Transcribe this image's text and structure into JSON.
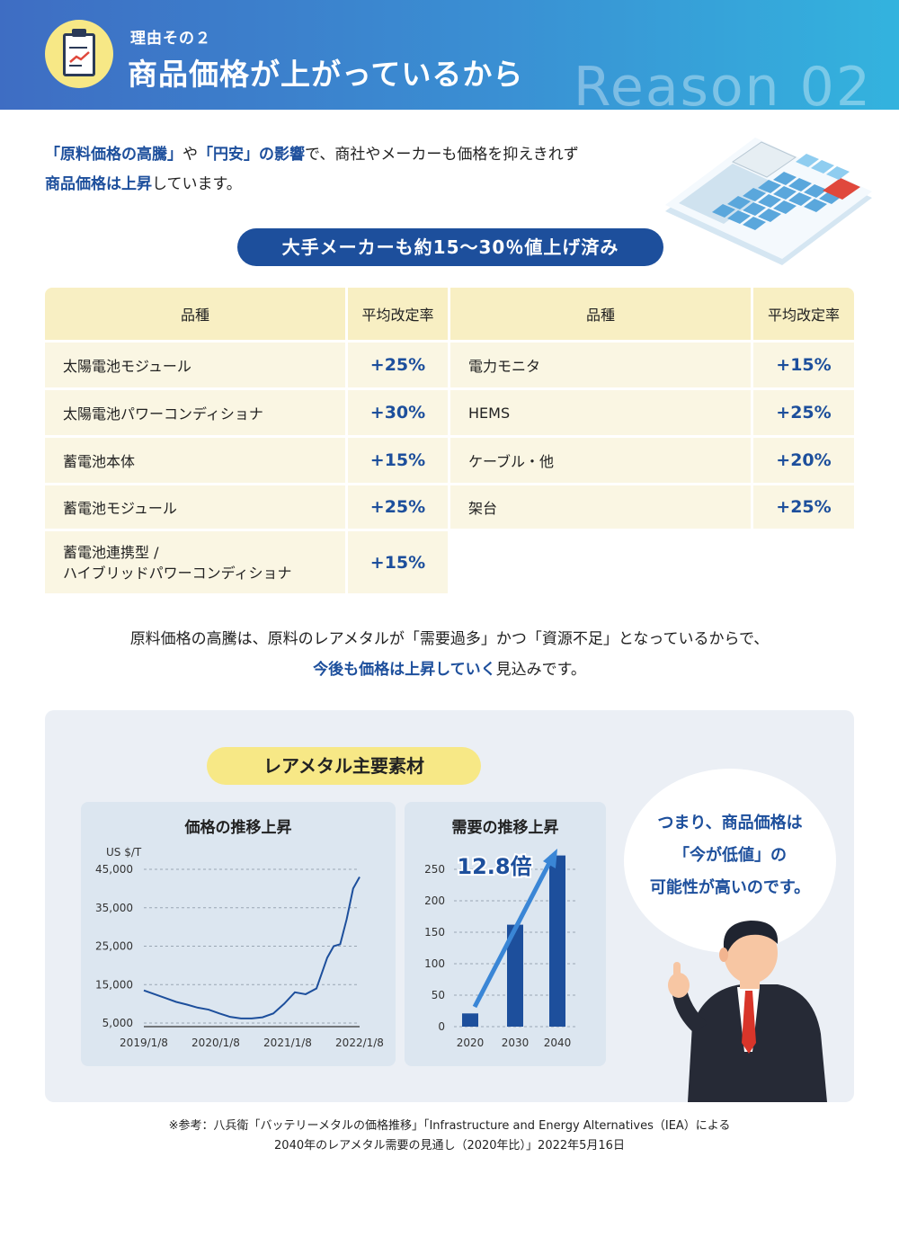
{
  "header": {
    "subtitle": "理由その２",
    "title": "商品価格が上がっているから",
    "reason": "Reason 02"
  },
  "intro": {
    "hl1": "「原料価格の高騰」",
    "t1": "や",
    "hl2": "「円安」の影響",
    "t2": "で、商社やメーカーも価格を抑えきれず",
    "hl3": "商品価格は上昇",
    "t3": "しています。"
  },
  "pill": "大手メーカーも約15～30％値上げ済み",
  "table": {
    "headers": [
      "品種",
      "平均改定率",
      "品種",
      "平均改定率"
    ],
    "left": [
      {
        "name": "太陽電池モジュール",
        "rate": "+25%"
      },
      {
        "name": "太陽電池パワーコンディショナ",
        "rate": "+30%"
      },
      {
        "name": "蓄電池本体",
        "rate": "+15%"
      },
      {
        "name": "蓄電池モジュール",
        "rate": "+25%"
      },
      {
        "name": "蓄電池連携型 /",
        "name2": "ハイブリッドパワーコンディショナ",
        "rate": "+15%"
      }
    ],
    "right": [
      {
        "name": "電力モニタ",
        "rate": "+15%"
      },
      {
        "name": "HEMS",
        "rate": "+25%"
      },
      {
        "name": "ケーブル・他",
        "rate": "+20%"
      },
      {
        "name": "架台",
        "rate": "+25%"
      }
    ]
  },
  "mid": {
    "line1": "原料価格の高騰は、原料のレアメタルが「需要過多」かつ「資源不足」となっているからで、",
    "hl": "今後も価格は上昇していく",
    "t": "見込みです。"
  },
  "rare_pill": "レアメタル主要素材",
  "chart_data": [
    {
      "type": "line",
      "title": "価格の推移上昇",
      "ylabel": "US $/T",
      "yticks": [
        "45,000",
        "35,000",
        "25,000",
        "15,000",
        "5,000"
      ],
      "xticks": [
        "2019/1/8",
        "2020/1/8",
        "2021/1/8",
        "2022/1/8"
      ],
      "ylim": [
        5000,
        45000
      ],
      "x": [
        0,
        0.05,
        0.1,
        0.15,
        0.2,
        0.25,
        0.3,
        0.35,
        0.4,
        0.45,
        0.5,
        0.55,
        0.6,
        0.65,
        0.7,
        0.75,
        0.8,
        0.85,
        0.88,
        0.91,
        0.94,
        0.97,
        1.0
      ],
      "values": [
        13500,
        12500,
        11500,
        10500,
        9800,
        9000,
        8500,
        7500,
        6600,
        6200,
        6200,
        6500,
        7500,
        10000,
        13000,
        12500,
        14000,
        22000,
        25000,
        25500,
        32000,
        40000,
        43000
      ]
    },
    {
      "type": "bar",
      "title": "需要の推移上昇",
      "categories": [
        "2020",
        "2030",
        "2040"
      ],
      "values": [
        21,
        162,
        272
      ],
      "yticks": [
        "250",
        "200",
        "150",
        "100",
        "50",
        "0"
      ],
      "ylim": [
        0,
        250
      ],
      "annotation": "12.8倍"
    }
  ],
  "speech": {
    "line1": "つまり、商品価格は",
    "line2": "「今が低値」の",
    "line3": "可能性が高いのです。"
  },
  "footnote": {
    "line1": "※参考：八兵衛「バッテリーメタルの価格推移」「Infrastructure and Energy Alternatives（IEA）による",
    "line2": "2040年のレアメタル需要の見通し（2020年比）」2022年5月16日"
  },
  "colors": {
    "accent": "#1d4f9c",
    "yellow": "#f7e886",
    "table_head": "#f8efc3",
    "table_row": "#faf6e3"
  }
}
